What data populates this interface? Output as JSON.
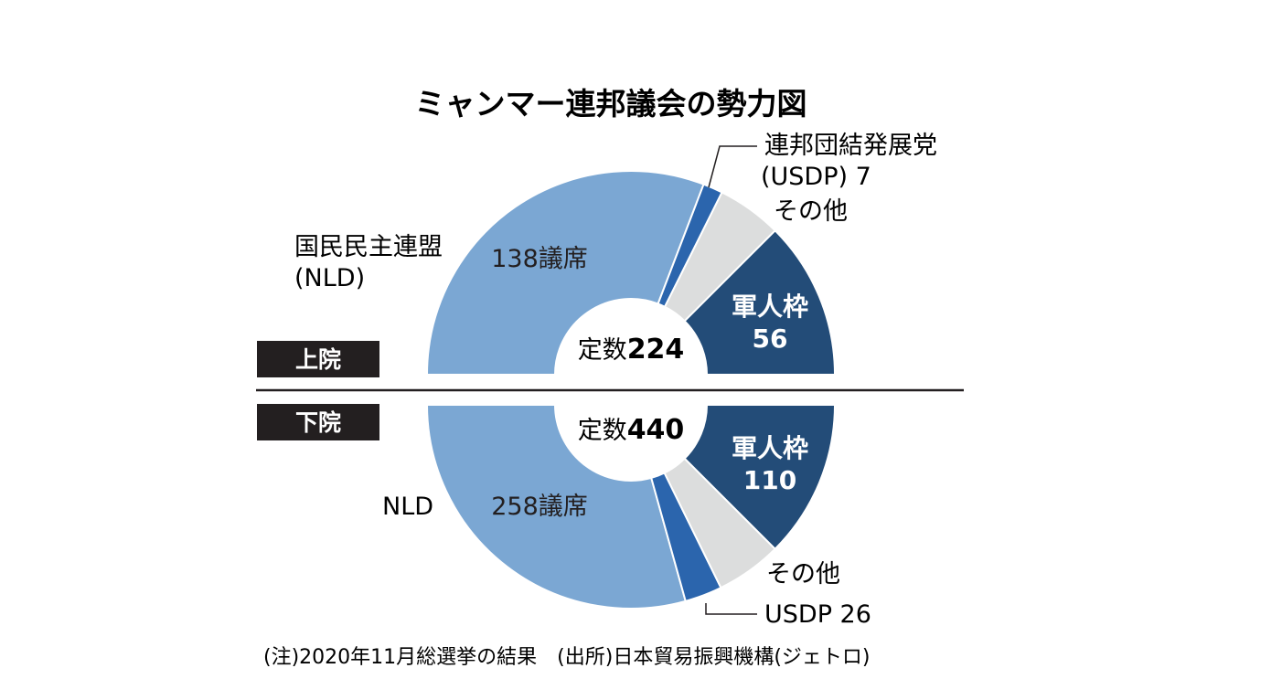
{
  "title": "ミャンマー連邦議会の勢力図",
  "footnote": "(注)2020年11月総選挙の結果　(出所)日本貿易振興機構(ジェトロ)",
  "colors": {
    "nld": "#7ba7d3",
    "usdp": "#2b65ad",
    "other": "#dcdddd",
    "military": "#234c78",
    "tag_bg": "#231f20",
    "divider": "#231f20"
  },
  "chart_data": [
    {
      "type": "pie",
      "subtype": "half-donut",
      "house": "上院",
      "total_label": "定数",
      "total": 224,
      "segments": [
        {
          "name": "NLD",
          "value": 138,
          "label_lines": [
            "国民民主連盟",
            "(NLD)"
          ],
          "value_label": "138議席",
          "color_key": "nld"
        },
        {
          "name": "USDP",
          "value": 7,
          "label_lines": [
            "連邦団結発展党",
            "(USDP) 7"
          ],
          "color_key": "usdp"
        },
        {
          "name": "その他",
          "value": 23,
          "label_lines": [
            "その他"
          ],
          "color_key": "other"
        },
        {
          "name": "軍人枠",
          "value": 56,
          "label_lines": [
            "軍人枠",
            "56"
          ],
          "color_key": "military"
        }
      ]
    },
    {
      "type": "pie",
      "subtype": "half-donut",
      "house": "下院",
      "total_label": "定数",
      "total": 440,
      "segments": [
        {
          "name": "NLD",
          "value": 258,
          "label_lines": [
            "NLD"
          ],
          "value_label": "258議席",
          "color_key": "nld"
        },
        {
          "name": "USDP",
          "value": 26,
          "label_lines": [
            "USDP 26"
          ],
          "color_key": "usdp"
        },
        {
          "name": "その他",
          "value": 46,
          "label_lines": [
            "その他"
          ],
          "color_key": "other"
        },
        {
          "name": "軍人枠",
          "value": 110,
          "label_lines": [
            "軍人枠",
            "110"
          ],
          "color_key": "military"
        }
      ]
    }
  ]
}
